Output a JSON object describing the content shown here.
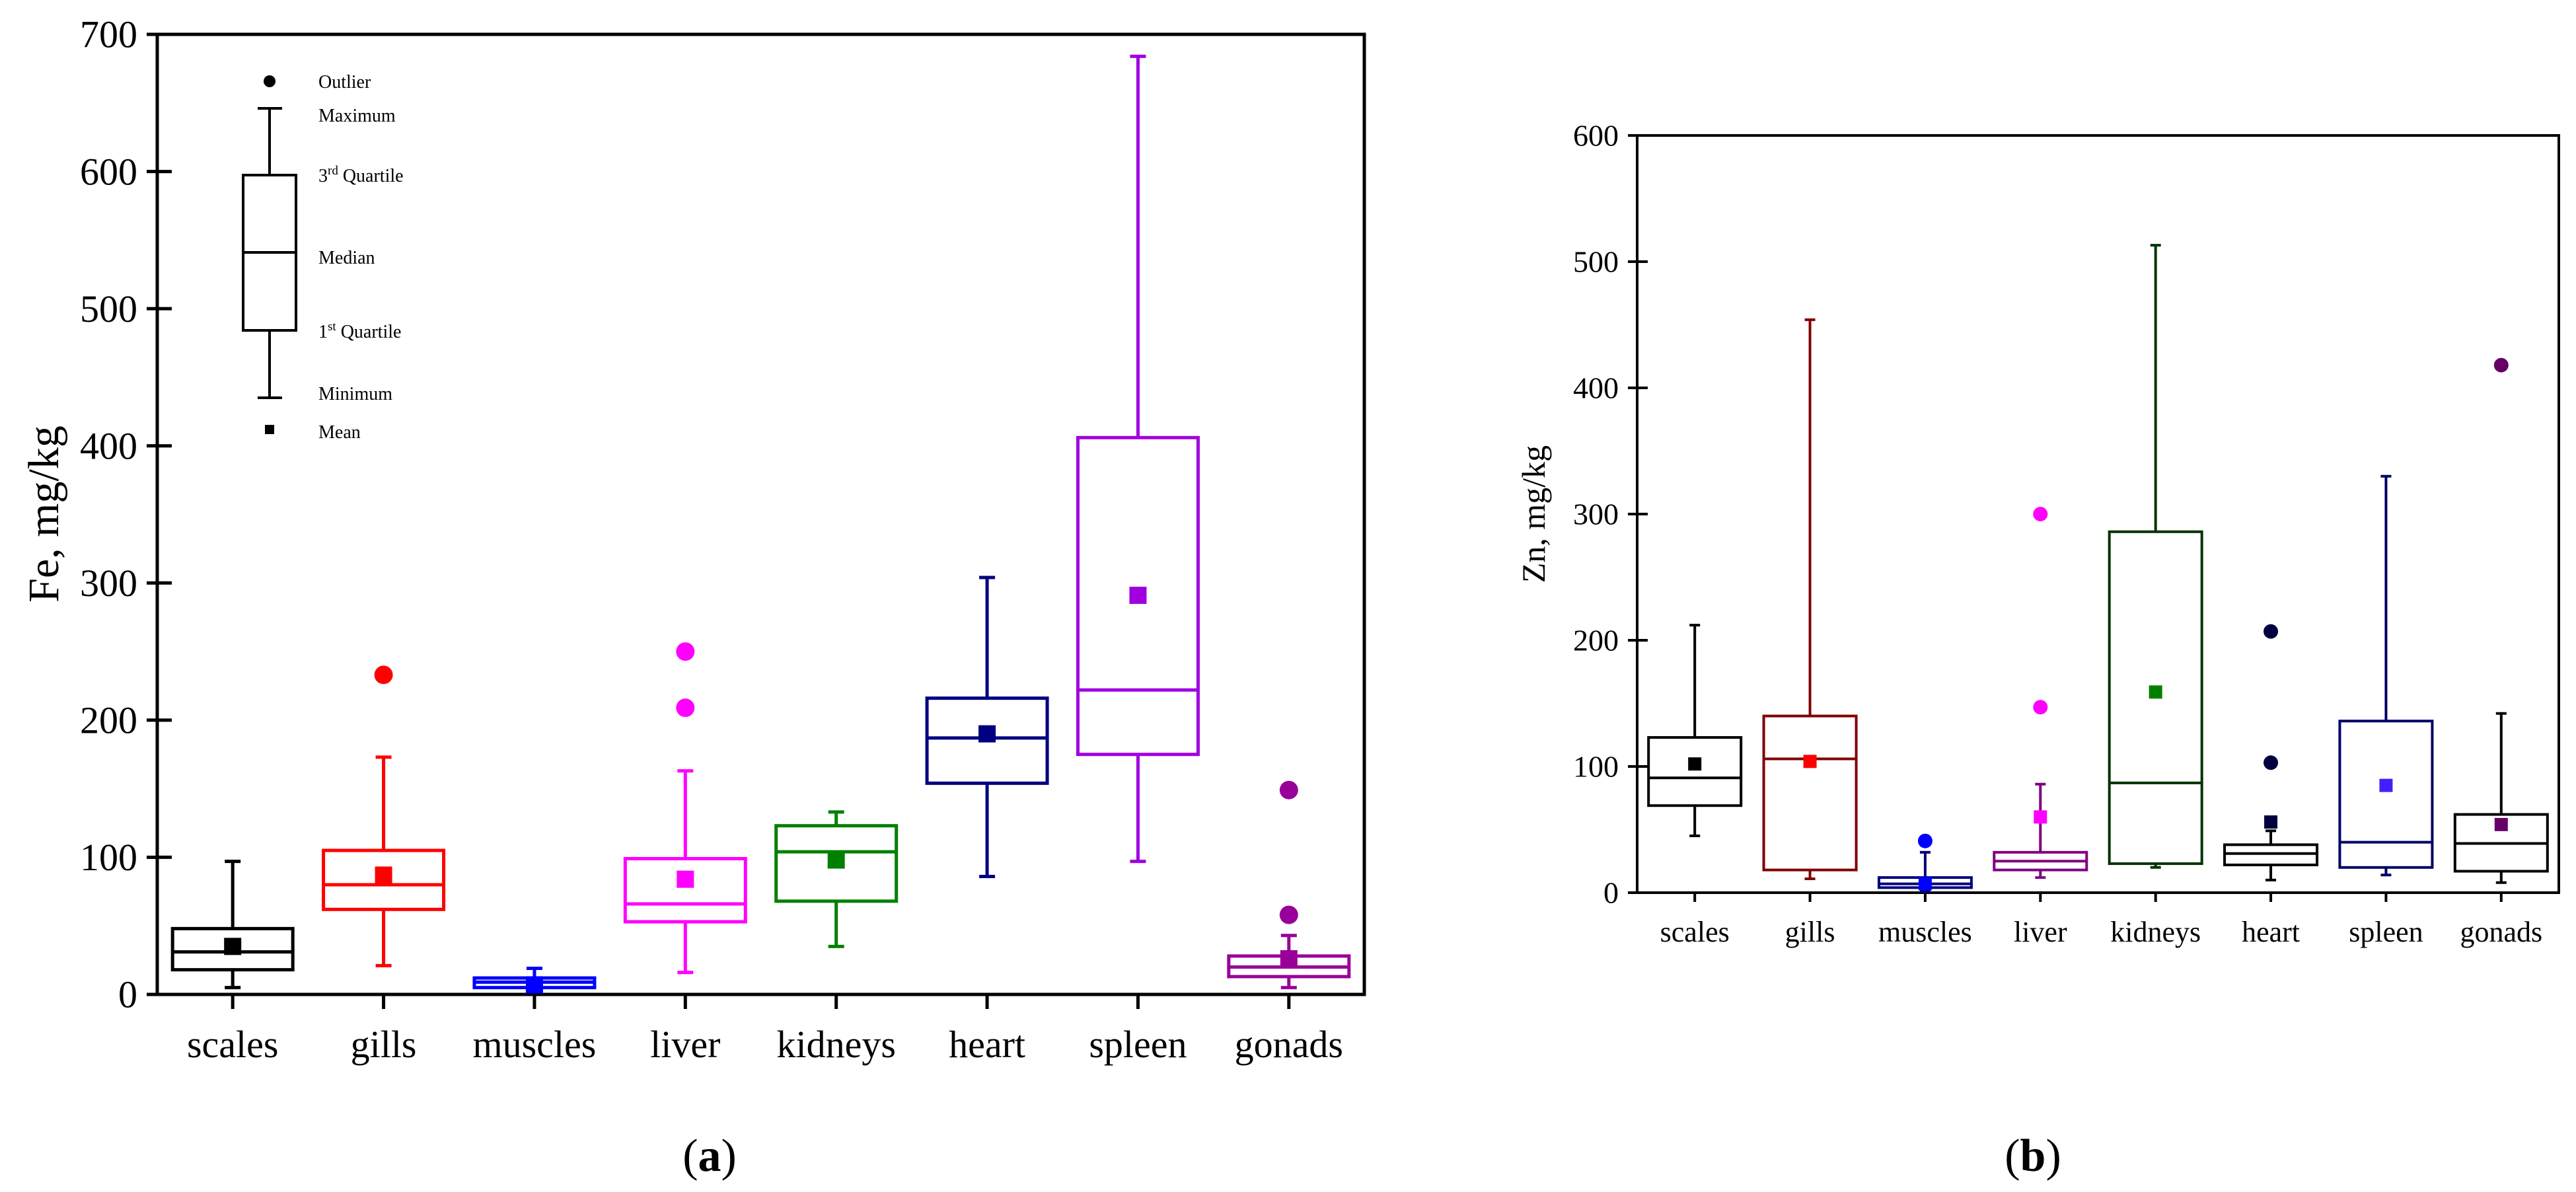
{
  "chart_data": [
    {
      "type": "box",
      "panel_label": "a",
      "ylabel": "Fe, mg/kg",
      "ylim": [
        0,
        700
      ],
      "yticks": [
        0,
        100,
        200,
        300,
        400,
        500,
        600,
        700
      ],
      "categories": [
        "scales",
        "gills",
        "muscles",
        "liver",
        "kidneys",
        "heart",
        "spleen",
        "gonads"
      ],
      "colors": [
        "#000000",
        "#ff0000",
        "#0000ff",
        "#ff00ff",
        "#008000",
        "#000080",
        "#a000e0",
        "#990099"
      ],
      "boxes": [
        {
          "min": 5,
          "q1": 18,
          "median": 31,
          "q3": 48,
          "max": 97,
          "mean": 35,
          "outliers": []
        },
        {
          "min": 21,
          "q1": 62,
          "median": 80,
          "q3": 105,
          "max": 173,
          "mean": 87,
          "outliers": [
            233
          ]
        },
        {
          "min": 2,
          "q1": 5,
          "median": 9,
          "q3": 12,
          "max": 19,
          "mean": 7,
          "outliers": []
        },
        {
          "min": 16,
          "q1": 53,
          "median": 66,
          "q3": 99,
          "max": 163,
          "mean": 84,
          "outliers": [
            209,
            250
          ]
        },
        {
          "min": 35,
          "q1": 68,
          "median": 104,
          "q3": 123,
          "max": 133,
          "mean": 98,
          "outliers": []
        },
        {
          "min": 86,
          "q1": 154,
          "median": 187,
          "q3": 216,
          "max": 304,
          "mean": 190,
          "outliers": []
        },
        {
          "min": 97,
          "q1": 175,
          "median": 222,
          "q3": 406,
          "max": 684,
          "mean": 291,
          "outliers": []
        },
        {
          "min": 5,
          "q1": 13,
          "median": 20,
          "q3": 28,
          "max": 43,
          "mean": 26,
          "outliers": [
            58,
            149
          ]
        }
      ],
      "legend": {
        "outlier": "Outlier",
        "maximum": "Maximum",
        "q3_pre": "3",
        "q3_sup": "rd",
        "q3_post": " Quartile",
        "median": "Median",
        "q1_pre": "1",
        "q1_sup": "st",
        "q1_post": " Quartile",
        "minimum": "Minimum",
        "mean": "Mean"
      }
    },
    {
      "type": "box",
      "panel_label": "b",
      "ylabel": "Zn, mg/kg",
      "ylim": [
        0,
        600
      ],
      "yticks": [
        0,
        100,
        200,
        300,
        400,
        500,
        600
      ],
      "categories": [
        "scales",
        "gills",
        "muscles",
        "liver",
        "kidneys",
        "heart",
        "spleen",
        "gonads"
      ],
      "colors": [
        "#000000",
        "#800000",
        "#000080",
        "#800080",
        "#003300",
        "#000000",
        "#000066",
        "#000000"
      ],
      "mean_colors": [
        "#000000",
        "#ff0000",
        "#0000ff",
        "#ff00ff",
        "#008000",
        "#000040",
        "#4020ff",
        "#660066"
      ],
      "boxes": [
        {
          "min": 45,
          "q1": 69,
          "median": 91,
          "q3": 123,
          "max": 212,
          "mean": 102,
          "outliers": []
        },
        {
          "min": 11,
          "q1": 18,
          "median": 106,
          "q3": 140,
          "max": 454,
          "mean": 104,
          "outliers": []
        },
        {
          "min": 1,
          "q1": 4,
          "median": 7,
          "q3": 12,
          "max": 32,
          "mean": 7,
          "outliers": [
            41
          ]
        },
        {
          "min": 12,
          "q1": 18,
          "median": 25,
          "q3": 32,
          "max": 86,
          "mean": 60,
          "outliers": [
            147,
            300
          ]
        },
        {
          "min": 20,
          "q1": 23,
          "median": 87,
          "q3": 286,
          "max": 513,
          "mean": 159,
          "outliers": []
        },
        {
          "min": 10,
          "q1": 22,
          "median": 31,
          "q3": 38,
          "max": 49,
          "mean": 56,
          "outliers": [
            103,
            207
          ]
        },
        {
          "min": 14,
          "q1": 20,
          "median": 40,
          "q3": 136,
          "max": 330,
          "mean": 85,
          "outliers": []
        },
        {
          "min": 8,
          "q1": 17,
          "median": 39,
          "q3": 62,
          "max": 142,
          "mean": 54,
          "outliers": [
            418
          ]
        }
      ]
    }
  ]
}
